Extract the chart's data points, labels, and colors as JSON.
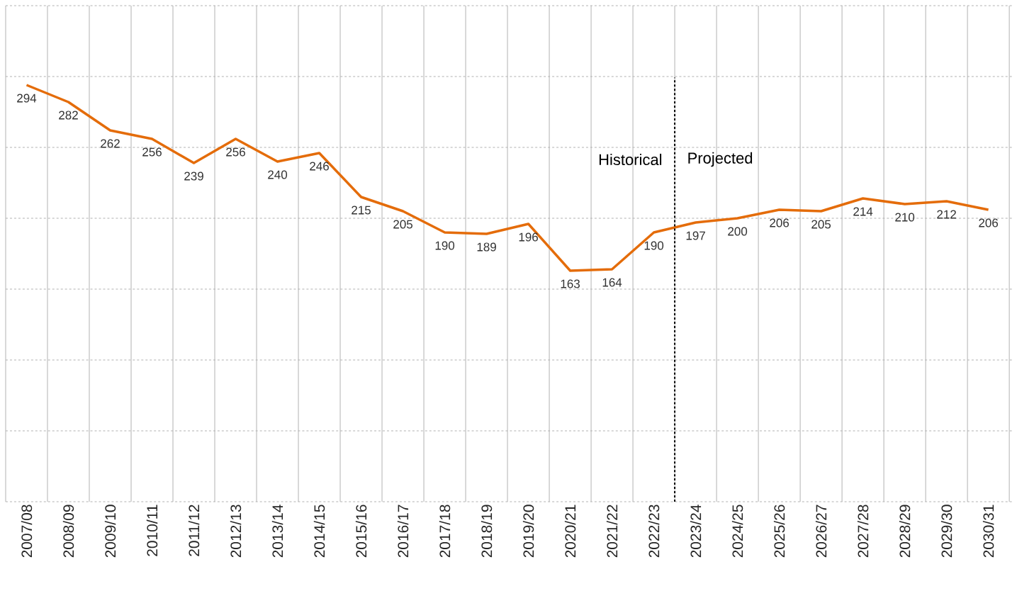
{
  "chart_data": {
    "type": "line",
    "categories": [
      "2007/08",
      "2008/09",
      "2009/10",
      "2010/11",
      "2011/12",
      "2012/13",
      "2013/14",
      "2014/15",
      "2015/16",
      "2016/17",
      "2017/18",
      "2018/19",
      "2019/20",
      "2020/21",
      "2021/22",
      "2022/23",
      "2023/24",
      "2024/25",
      "2025/26",
      "2026/27",
      "2027/28",
      "2028/29",
      "2029/30",
      "2030/31"
    ],
    "values": [
      294,
      282,
      262,
      256,
      239,
      256,
      240,
      246,
      215,
      205,
      190,
      189,
      196,
      163,
      164,
      190,
      197,
      200,
      206,
      205,
      214,
      210,
      212,
      206
    ],
    "color": "#e46c0a",
    "ylim": [
      0,
      350
    ],
    "yticks": [
      {
        "value": 0,
        "label": null
      },
      {
        "value": 50,
        "label": null
      },
      {
        "value": 100,
        "label": null
      },
      {
        "value": 150,
        "label": null
      },
      {
        "value": 200,
        "label": null
      },
      {
        "value": 250,
        "label": null
      },
      {
        "value": 300,
        "label": null
      },
      {
        "value": 350,
        "label": null
      }
    ],
    "tick_labels": "x",
    "grid": true,
    "marker": "none",
    "line_style": "solid",
    "data_labels": true,
    "ref_lines": [
      {
        "axis": "x",
        "value": "2023/24",
        "color": "#000000",
        "line_style": "dashed"
      }
    ],
    "annotations": [
      "Historical",
      "Projected"
    ]
  }
}
